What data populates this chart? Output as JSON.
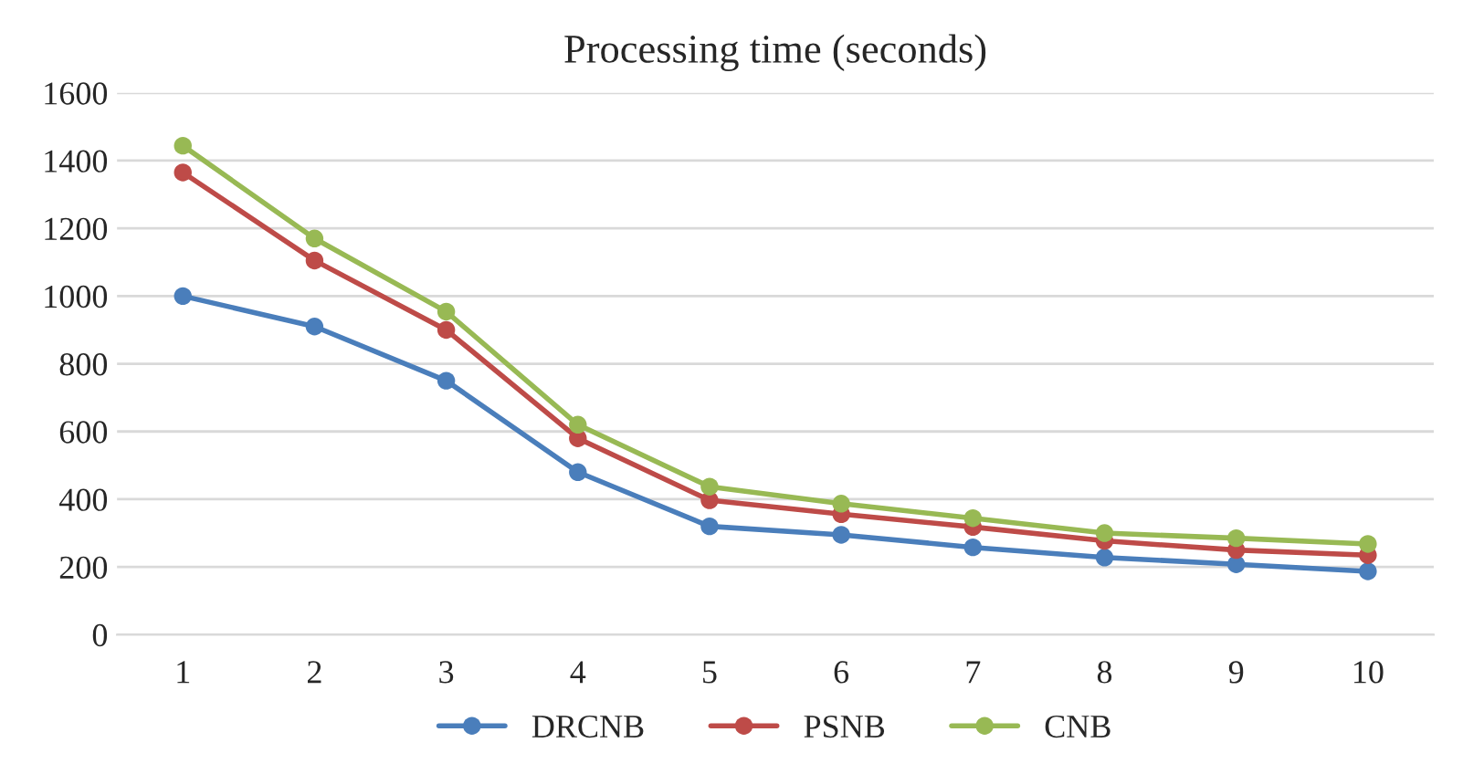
{
  "chart_data": {
    "type": "line",
    "title": "Processing time (seconds)",
    "categories": [
      "1",
      "2",
      "3",
      "4",
      "5",
      "6",
      "7",
      "8",
      "9",
      "10"
    ],
    "series": [
      {
        "name": "DRCNB",
        "color": "#4a7ebb",
        "values": [
          1000,
          910,
          750,
          480,
          320,
          295,
          258,
          228,
          208,
          187
        ]
      },
      {
        "name": "PSNB",
        "color": "#be4b48",
        "values": [
          1365,
          1105,
          900,
          580,
          397,
          356,
          318,
          277,
          250,
          235
        ]
      },
      {
        "name": "CNB",
        "color": "#98b954",
        "values": [
          1444,
          1170,
          954,
          620,
          437,
          387,
          344,
          300,
          285,
          268
        ]
      }
    ],
    "ylim": [
      0,
      1600
    ],
    "yticks": [
      0,
      200,
      400,
      600,
      800,
      1000,
      1200,
      1400,
      1600
    ],
    "grid": "y",
    "legend": "bottom",
    "marker": "circle",
    "line_style": "solid"
  }
}
